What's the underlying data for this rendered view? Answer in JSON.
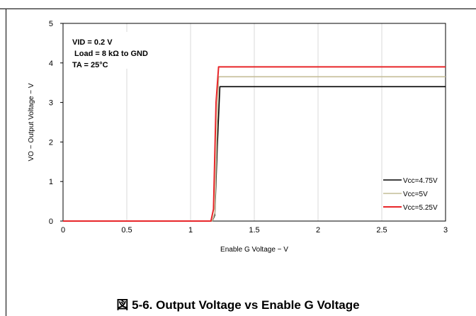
{
  "caption": "図 5-6. Output Voltage vs Enable G Voltage",
  "chart_data": {
    "type": "line",
    "title": "",
    "xlabel": "Enable G Voltage − V",
    "ylabel": "VO − Output Voltage − V",
    "xlim": [
      0,
      3
    ],
    "ylim": [
      0,
      5
    ],
    "x_ticks": [
      0,
      0.5,
      1,
      1.5,
      2,
      2.5,
      3
    ],
    "x_tick_labels": [
      "0",
      "0.5",
      "1",
      "1.5",
      "2",
      "2.5",
      "3"
    ],
    "y_ticks": [
      0,
      1,
      2,
      3,
      4,
      5
    ],
    "y_tick_labels": [
      "0",
      "1",
      "2",
      "3",
      "4",
      "5"
    ],
    "grid": "vertical",
    "legend_position": "bottom-right",
    "annotations": [
      "VID = 0.2 V",
      " Load = 8 kΩ to GND",
      "TA = 25°C"
    ],
    "series": [
      {
        "name": "Vcc=4.75V",
        "color": "#000000",
        "x": [
          0,
          1.17,
          1.19,
          1.21,
          1.23,
          3
        ],
        "y": [
          0,
          0,
          0.15,
          1.9,
          3.4,
          3.4
        ]
      },
      {
        "name": "Vcc=5V",
        "color": "#c4bd97",
        "x": [
          0,
          1.17,
          1.19,
          1.21,
          1.22,
          3
        ],
        "y": [
          0,
          0,
          0.2,
          2.6,
          3.65,
          3.65
        ]
      },
      {
        "name": "Vcc=5.25V",
        "color": "#e8262a",
        "x": [
          0,
          1.16,
          1.18,
          1.2,
          1.22,
          3
        ],
        "y": [
          0,
          0,
          0.3,
          3.0,
          3.9,
          3.9
        ]
      }
    ]
  }
}
